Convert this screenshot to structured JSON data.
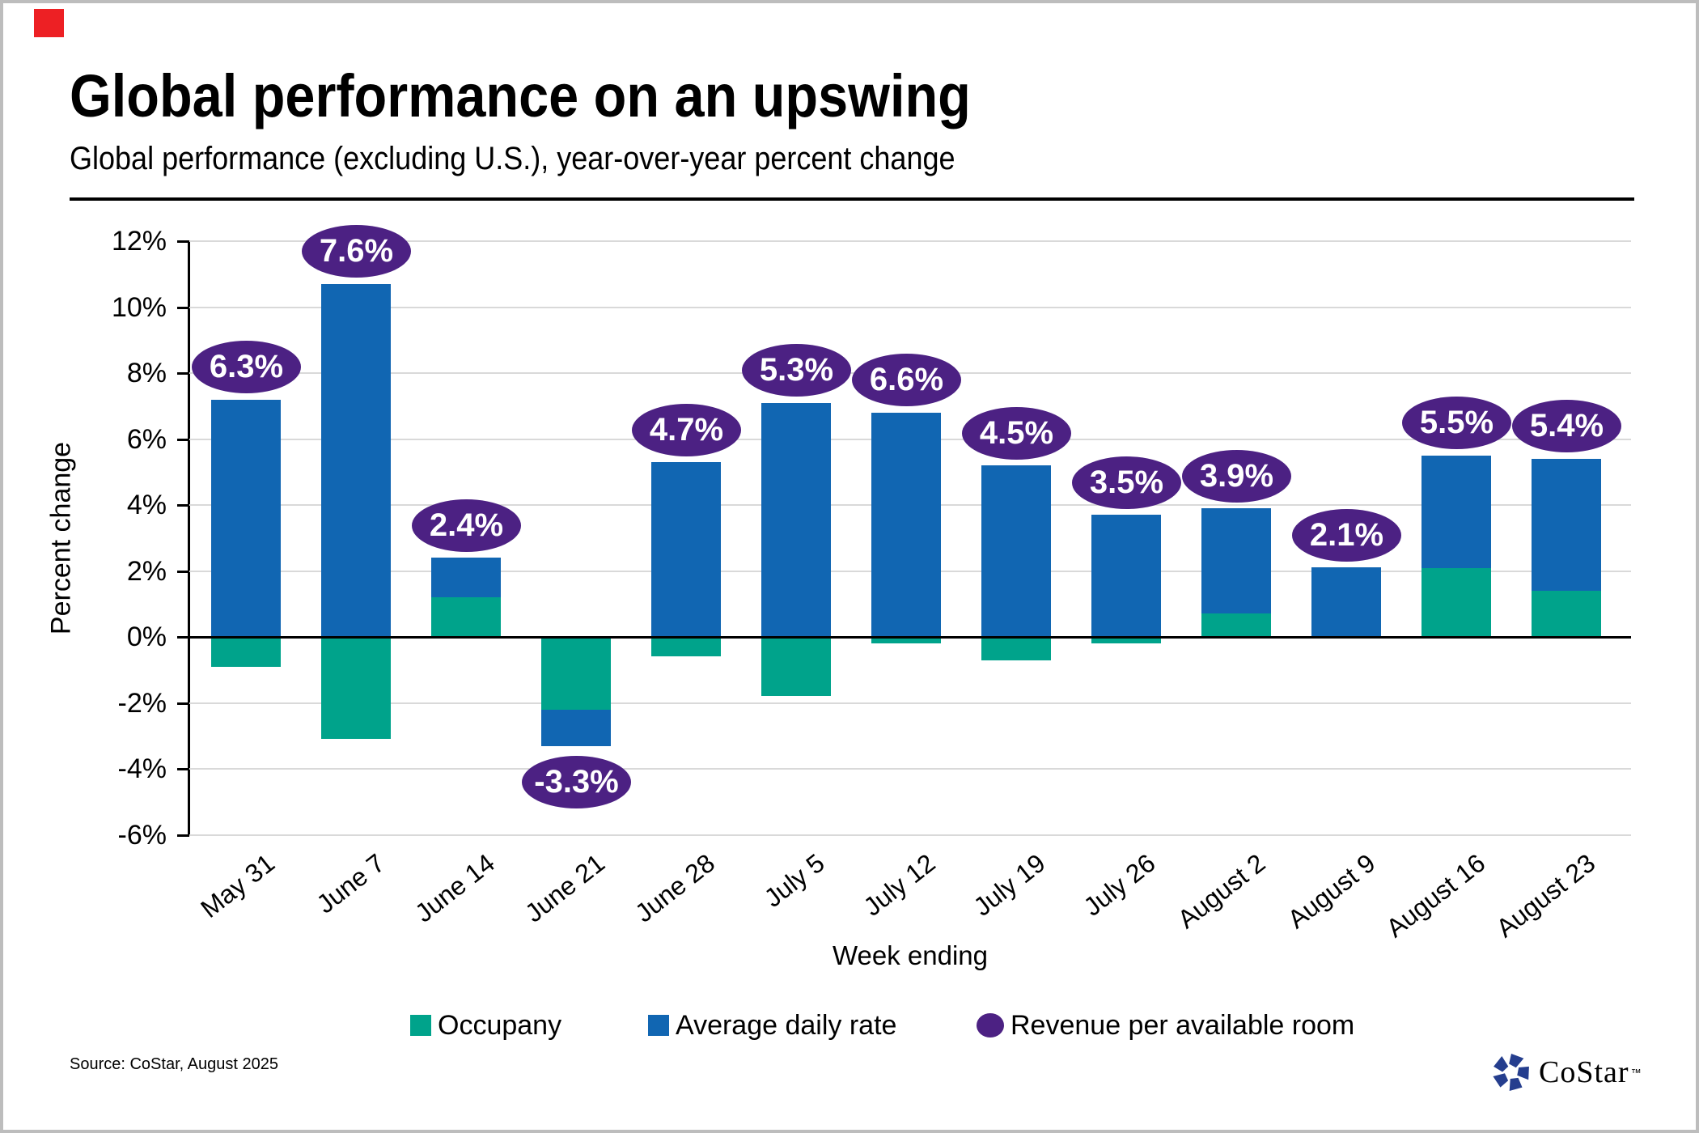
{
  "page": {
    "corner_marker_color": "#ED2024",
    "background": "#FFFFFF"
  },
  "header": {
    "title": "Global performance on an upswing",
    "subtitle": "Global performance (excluding U.S.), year-over-year percent change"
  },
  "chart_data": {
    "type": "bar",
    "stacked": true,
    "xlabel": "Week ending",
    "ylabel": "Percent change",
    "ylim": [
      -6,
      12
    ],
    "grid": true,
    "ytick_labels": [
      "12%",
      "10%",
      "8%",
      "6%",
      "4%",
      "2%",
      "0%",
      "-2%",
      "-4%",
      "-6%"
    ],
    "ytick_values": [
      12,
      10,
      8,
      6,
      4,
      2,
      0,
      -2,
      -4,
      -6
    ],
    "categories": [
      "May 31",
      "June 7",
      "June 14",
      "June 21",
      "June 28",
      "July 5",
      "July 12",
      "July 19",
      "July 26",
      "August 2",
      "August 9",
      "August 16",
      "August 23"
    ],
    "series": [
      {
        "name": "Occupany",
        "color": "#00A38B",
        "values": [
          -0.9,
          -3.1,
          1.2,
          -2.2,
          -0.6,
          -1.8,
          -0.2,
          -0.7,
          -0.2,
          0.7,
          0.0,
          2.1,
          1.4
        ]
      },
      {
        "name": "Average daily rate",
        "color": "#1166B2",
        "values": [
          7.2,
          10.7,
          1.2,
          -1.1,
          5.3,
          7.1,
          6.8,
          5.2,
          3.7,
          3.2,
          2.1,
          3.4,
          4.0
        ]
      }
    ],
    "bubbles": {
      "name": "Revenue per available room",
      "color": "#4C2183",
      "text_color": "#FFFFFF",
      "values": [
        6.3,
        7.6,
        2.4,
        -3.3,
        4.7,
        5.3,
        6.6,
        4.5,
        3.5,
        3.9,
        2.1,
        5.5,
        5.4
      ],
      "labels": [
        "6.3%",
        "7.6%",
        "2.4%",
        "-3.3%",
        "4.7%",
        "5.3%",
        "6.6%",
        "4.5%",
        "3.5%",
        "3.9%",
        "2.1%",
        "5.5%",
        "5.4%"
      ]
    },
    "legend_position": "bottom"
  },
  "legend": {
    "items": [
      {
        "label": "Occupany",
        "shape": "square",
        "color": "#00A38B"
      },
      {
        "label": "Average daily rate",
        "shape": "square",
        "color": "#1166B2"
      },
      {
        "label": "Revenue per available room",
        "shape": "ellipse",
        "color": "#4C2183"
      }
    ]
  },
  "footer": {
    "source": "Source: CoStar, August 2025",
    "logo": {
      "icon": "costar-pinwheel-icon",
      "icon_color": "#253E8E",
      "text": "CoStar",
      "tm": "™"
    }
  }
}
